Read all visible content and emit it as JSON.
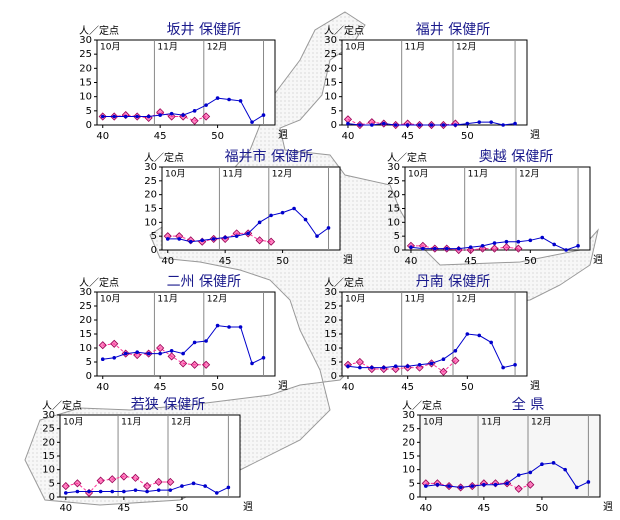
{
  "chart_data": [
    {
      "type": "line",
      "title": "坂井 保健所",
      "ylabel": "人／定点",
      "xlabel": "週",
      "xlim": [
        39.5,
        55
      ],
      "ylim": [
        0,
        30
      ],
      "xticks": [
        40,
        45,
        50
      ],
      "yticks": [
        0,
        5,
        10,
        15,
        20,
        25,
        30
      ],
      "months": [
        "10月",
        "11月",
        "12月"
      ],
      "month_lines": [
        44.5,
        48.8,
        54
      ],
      "series": [
        {
          "color": "#ff3399",
          "marker": "diamond",
          "dash": true,
          "x": [
            40,
            41,
            42,
            43,
            44,
            45,
            46,
            47,
            48,
            49
          ],
          "values": [
            3,
            3,
            3.5,
            3,
            2.5,
            4.5,
            3,
            3,
            1.5,
            3
          ]
        },
        {
          "color": "#0000cc",
          "marker": "circle",
          "dash": false,
          "x": [
            40,
            41,
            42,
            43,
            44,
            45,
            46,
            47,
            48,
            49,
            50,
            51,
            52,
            53,
            54
          ],
          "values": [
            3,
            3,
            3,
            3,
            3,
            3.5,
            4,
            3.5,
            5,
            7,
            9.5,
            9,
            8.5,
            1,
            3.5
          ]
        }
      ]
    },
    {
      "type": "line",
      "title": "福井 保健所",
      "ylabel": "人／定点",
      "xlabel": "週",
      "xlim": [
        39.5,
        55
      ],
      "ylim": [
        0,
        30
      ],
      "xticks": [
        40,
        45,
        50
      ],
      "yticks": [
        0,
        5,
        10,
        15,
        20,
        25,
        30
      ],
      "months": [
        "10月",
        "11月",
        "12月"
      ],
      "month_lines": [
        44.5,
        48.8,
        54
      ],
      "series": [
        {
          "color": "#ff3399",
          "marker": "diamond",
          "dash": true,
          "x": [
            40,
            41,
            42,
            43,
            44,
            45,
            46,
            47,
            48,
            49
          ],
          "values": [
            2,
            0,
            1,
            0.5,
            0,
            0.5,
            0,
            0,
            0,
            0.5
          ]
        },
        {
          "color": "#0000cc",
          "marker": "circle",
          "dash": false,
          "x": [
            40,
            41,
            42,
            43,
            44,
            45,
            46,
            47,
            48,
            49,
            50,
            51,
            52,
            53,
            54
          ],
          "values": [
            0.5,
            0,
            0,
            0.5,
            0,
            0,
            0,
            0,
            0,
            0,
            0.5,
            1,
            1,
            0,
            0.5
          ]
        }
      ]
    },
    {
      "type": "line",
      "title": "福井市 保健所",
      "ylabel": "人／定点",
      "xlabel": "週",
      "xlim": [
        39.5,
        55
      ],
      "ylim": [
        0,
        30
      ],
      "xticks": [
        40,
        45,
        50
      ],
      "yticks": [
        0,
        5,
        10,
        15,
        20,
        25,
        30
      ],
      "months": [
        "10月",
        "11月",
        "12月"
      ],
      "month_lines": [
        44.5,
        48.8,
        54
      ],
      "series": [
        {
          "color": "#ff3399",
          "marker": "diamond",
          "dash": true,
          "x": [
            40,
            41,
            42,
            43,
            44,
            45,
            46,
            47,
            48,
            49
          ],
          "values": [
            5,
            5,
            3.5,
            3,
            4,
            4,
            6,
            6,
            3.5,
            3
          ]
        },
        {
          "color": "#0000cc",
          "marker": "circle",
          "dash": false,
          "x": [
            40,
            41,
            42,
            43,
            44,
            45,
            46,
            47,
            48,
            49,
            50,
            51,
            52,
            53,
            54
          ],
          "values": [
            4,
            4,
            3,
            3.5,
            4,
            4.5,
            5,
            6,
            10,
            12.5,
            13.5,
            15,
            11,
            5,
            8
          ]
        }
      ]
    },
    {
      "type": "line",
      "title": "奥越 保健所",
      "ylabel": "人／定点",
      "xlabel": "週",
      "xlim": [
        39.5,
        55
      ],
      "ylim": [
        0,
        30
      ],
      "xticks": [
        40,
        45,
        50
      ],
      "yticks": [
        0,
        5,
        10,
        15,
        20,
        25,
        30
      ],
      "months": [
        "10月",
        "11月",
        "12月"
      ],
      "month_lines": [
        44.5,
        48.8,
        54
      ],
      "series": [
        {
          "color": "#ff3399",
          "marker": "diamond",
          "dash": true,
          "x": [
            40,
            41,
            42,
            43,
            44,
            45,
            46,
            47,
            48,
            49
          ],
          "values": [
            1.5,
            1.5,
            0.5,
            0.5,
            0,
            0,
            0.5,
            0.5,
            1,
            0.5
          ]
        },
        {
          "color": "#0000cc",
          "marker": "circle",
          "dash": false,
          "x": [
            40,
            41,
            42,
            43,
            44,
            45,
            46,
            47,
            48,
            49,
            50,
            51,
            52,
            53,
            54
          ],
          "values": [
            1,
            0.5,
            0.5,
            0.5,
            0.5,
            1,
            1.5,
            2.5,
            3,
            3,
            3.5,
            4.5,
            2,
            0,
            1.5
          ]
        }
      ]
    },
    {
      "type": "line",
      "title": "二州 保健所",
      "ylabel": "人／定点",
      "xlabel": "週",
      "xlim": [
        39.5,
        55
      ],
      "ylim": [
        0,
        30
      ],
      "xticks": [
        40,
        45,
        50
      ],
      "yticks": [
        0,
        5,
        10,
        15,
        20,
        25,
        30
      ],
      "months": [
        "10月",
        "11月",
        "12月"
      ],
      "month_lines": [
        44.5,
        48.8,
        54
      ],
      "series": [
        {
          "color": "#ff3399",
          "marker": "diamond",
          "dash": true,
          "x": [
            40,
            41,
            42,
            43,
            44,
            45,
            46,
            47,
            48,
            49
          ],
          "values": [
            11,
            11.5,
            8,
            7.5,
            8,
            10,
            7,
            4.5,
            4,
            4
          ]
        },
        {
          "color": "#0000cc",
          "marker": "circle",
          "dash": false,
          "x": [
            40,
            41,
            42,
            43,
            44,
            45,
            46,
            47,
            48,
            49,
            50,
            51,
            52,
            53,
            54
          ],
          "values": [
            6,
            6.5,
            8,
            8.5,
            8,
            8,
            9,
            8,
            12,
            12.5,
            18,
            17.5,
            17.5,
            4.5,
            6.5
          ]
        }
      ]
    },
    {
      "type": "line",
      "title": "丹南 保健所",
      "ylabel": "人／定点",
      "xlabel": "週",
      "xlim": [
        39.5,
        55
      ],
      "ylim": [
        0,
        30
      ],
      "xticks": [
        40,
        45,
        50
      ],
      "yticks": [
        0,
        5,
        10,
        15,
        20,
        25,
        30
      ],
      "months": [
        "10月",
        "11月",
        "12月"
      ],
      "month_lines": [
        44.5,
        48.8,
        54
      ],
      "series": [
        {
          "color": "#ff3399",
          "marker": "diamond",
          "dash": true,
          "x": [
            40,
            41,
            42,
            43,
            44,
            45,
            46,
            47,
            48,
            49
          ],
          "values": [
            4,
            5,
            2.5,
            2.5,
            2.5,
            3,
            3,
            4.5,
            1.5,
            5.5
          ]
        },
        {
          "color": "#0000cc",
          "marker": "circle",
          "dash": false,
          "x": [
            40,
            41,
            42,
            43,
            44,
            45,
            46,
            47,
            48,
            49,
            50,
            51,
            52,
            53,
            54
          ],
          "values": [
            3.5,
            3,
            3,
            3,
            3.5,
            3.5,
            4,
            4.5,
            6,
            9,
            15,
            14.5,
            12,
            3,
            4
          ]
        }
      ]
    },
    {
      "type": "line",
      "title": "若狭 保健所",
      "ylabel": "人／定点",
      "xlabel": "週",
      "xlim": [
        39.5,
        55
      ],
      "ylim": [
        0,
        30
      ],
      "xticks": [
        40,
        45,
        50
      ],
      "yticks": [
        0,
        5,
        10,
        15,
        20,
        25,
        30
      ],
      "months": [
        "10月",
        "11月",
        "12月"
      ],
      "month_lines": [
        44.5,
        48.8,
        54
      ],
      "series": [
        {
          "color": "#ff3399",
          "marker": "diamond",
          "dash": true,
          "x": [
            40,
            41,
            42,
            43,
            44,
            45,
            46,
            47,
            48,
            49
          ],
          "values": [
            4,
            5,
            1.5,
            6,
            6.5,
            7.5,
            7,
            4,
            5.5,
            5.5
          ]
        },
        {
          "color": "#0000cc",
          "marker": "circle",
          "dash": false,
          "x": [
            40,
            41,
            42,
            43,
            44,
            45,
            46,
            47,
            48,
            49,
            50,
            51,
            52,
            53,
            54
          ],
          "values": [
            1.5,
            2,
            2,
            2,
            2,
            2,
            2.5,
            2,
            2.5,
            2.5,
            4,
            5,
            4,
            1.5,
            3.5
          ]
        }
      ]
    },
    {
      "type": "line",
      "title": "全 県",
      "ylabel": "人／定点",
      "xlabel": "週",
      "xlim": [
        39.5,
        55
      ],
      "ylim": [
        0,
        30
      ],
      "xticks": [
        40,
        45,
        50
      ],
      "yticks": [
        0,
        5,
        10,
        15,
        20,
        25,
        30
      ],
      "months": [
        "10月",
        "11月",
        "12月"
      ],
      "month_lines": [
        44.5,
        48.8,
        54
      ],
      "series": [
        {
          "color": "#ff3399",
          "marker": "diamond",
          "dash": true,
          "x": [
            40,
            41,
            42,
            43,
            44,
            45,
            46,
            47,
            48,
            49
          ],
          "values": [
            5,
            5,
            4,
            3.5,
            4,
            5,
            5,
            5,
            3,
            4.5
          ]
        },
        {
          "color": "#0000cc",
          "marker": "circle",
          "dash": false,
          "x": [
            40,
            41,
            42,
            43,
            44,
            45,
            46,
            47,
            48,
            49,
            50,
            51,
            52,
            53,
            54
          ],
          "values": [
            4,
            4.5,
            4,
            3.5,
            4,
            4.5,
            4.5,
            5,
            8,
            9,
            12,
            12.5,
            10,
            3.5,
            5.5
          ]
        }
      ]
    }
  ]
}
